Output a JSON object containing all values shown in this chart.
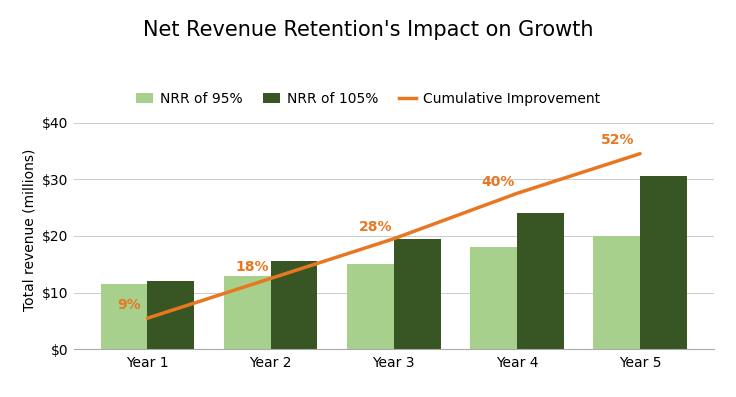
{
  "title": "Net Revenue Retention's Impact on Growth",
  "categories": [
    "Year 1",
    "Year 2",
    "Year 3",
    "Year 4",
    "Year 5"
  ],
  "nrr_95": [
    11.5,
    13.0,
    15.0,
    18.0,
    20.0
  ],
  "nrr_105": [
    12.0,
    15.5,
    19.5,
    24.0,
    30.5
  ],
  "cumulative_pct": [
    9,
    18,
    28,
    40,
    52
  ],
  "cumulative_line_y": [
    5.5,
    12.5,
    19.5,
    27.5,
    34.5
  ],
  "bar_color_95": "#a8d08d",
  "bar_color_105": "#375623",
  "line_color": "#e87722",
  "pct_color": "#e87722",
  "ylabel": "Total revenue (millions)",
  "ylim": [
    0,
    42
  ],
  "yticks": [
    0,
    10,
    20,
    30,
    40
  ],
  "ytick_labels": [
    "$0",
    "$10",
    "$20",
    "$30",
    "$40"
  ],
  "background_color": "#ffffff",
  "legend_labels": [
    "NRR of 95%",
    "NRR of 105%",
    "Cumulative Improvement"
  ],
  "bar_width": 0.38,
  "title_fontsize": 15,
  "axis_fontsize": 10,
  "tick_fontsize": 10,
  "legend_fontsize": 10
}
